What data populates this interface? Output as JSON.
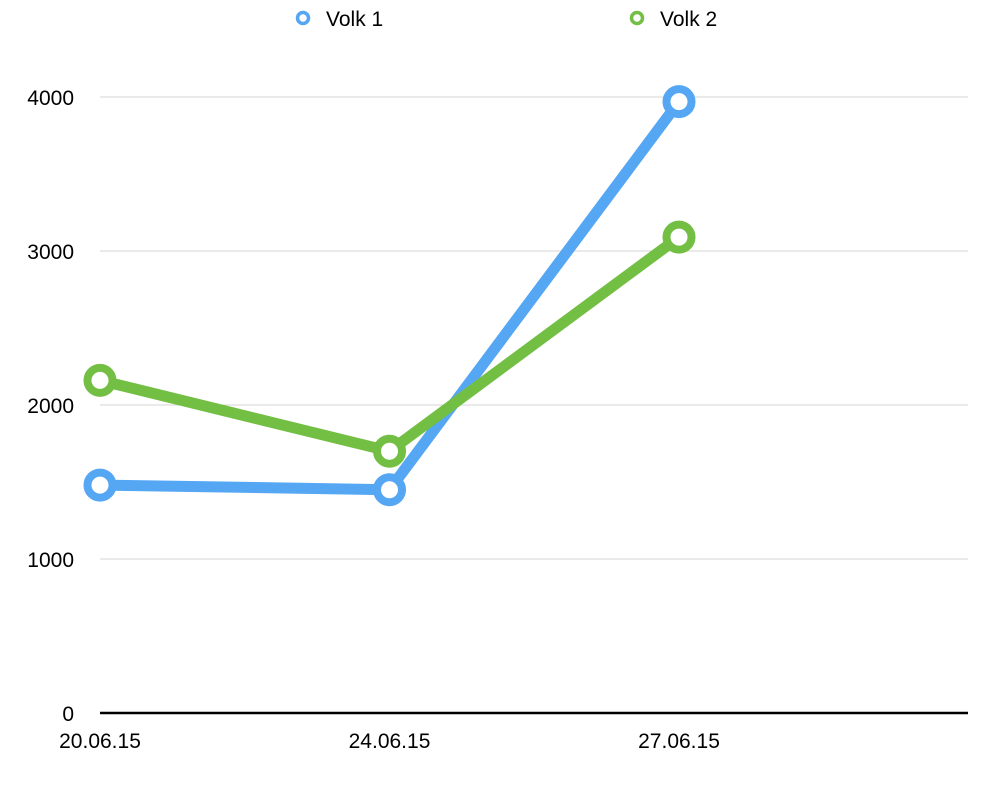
{
  "chart_data": {
    "type": "line",
    "title": "",
    "xlabel": "",
    "ylabel": "",
    "categories": [
      "20.06.15",
      "24.06.15",
      "27.06.15"
    ],
    "ylim": [
      0,
      4000
    ],
    "yticks": [
      0,
      1000,
      2000,
      3000,
      4000
    ],
    "grid": true,
    "legend_position": "top-center",
    "series": [
      {
        "name": "Volk 1",
        "color": "#55a6f3",
        "values": [
          1480,
          1450,
          3970
        ]
      },
      {
        "name": "Volk 2",
        "color": "#72bf44",
        "values": [
          2160,
          1700,
          3090
        ]
      }
    ]
  }
}
